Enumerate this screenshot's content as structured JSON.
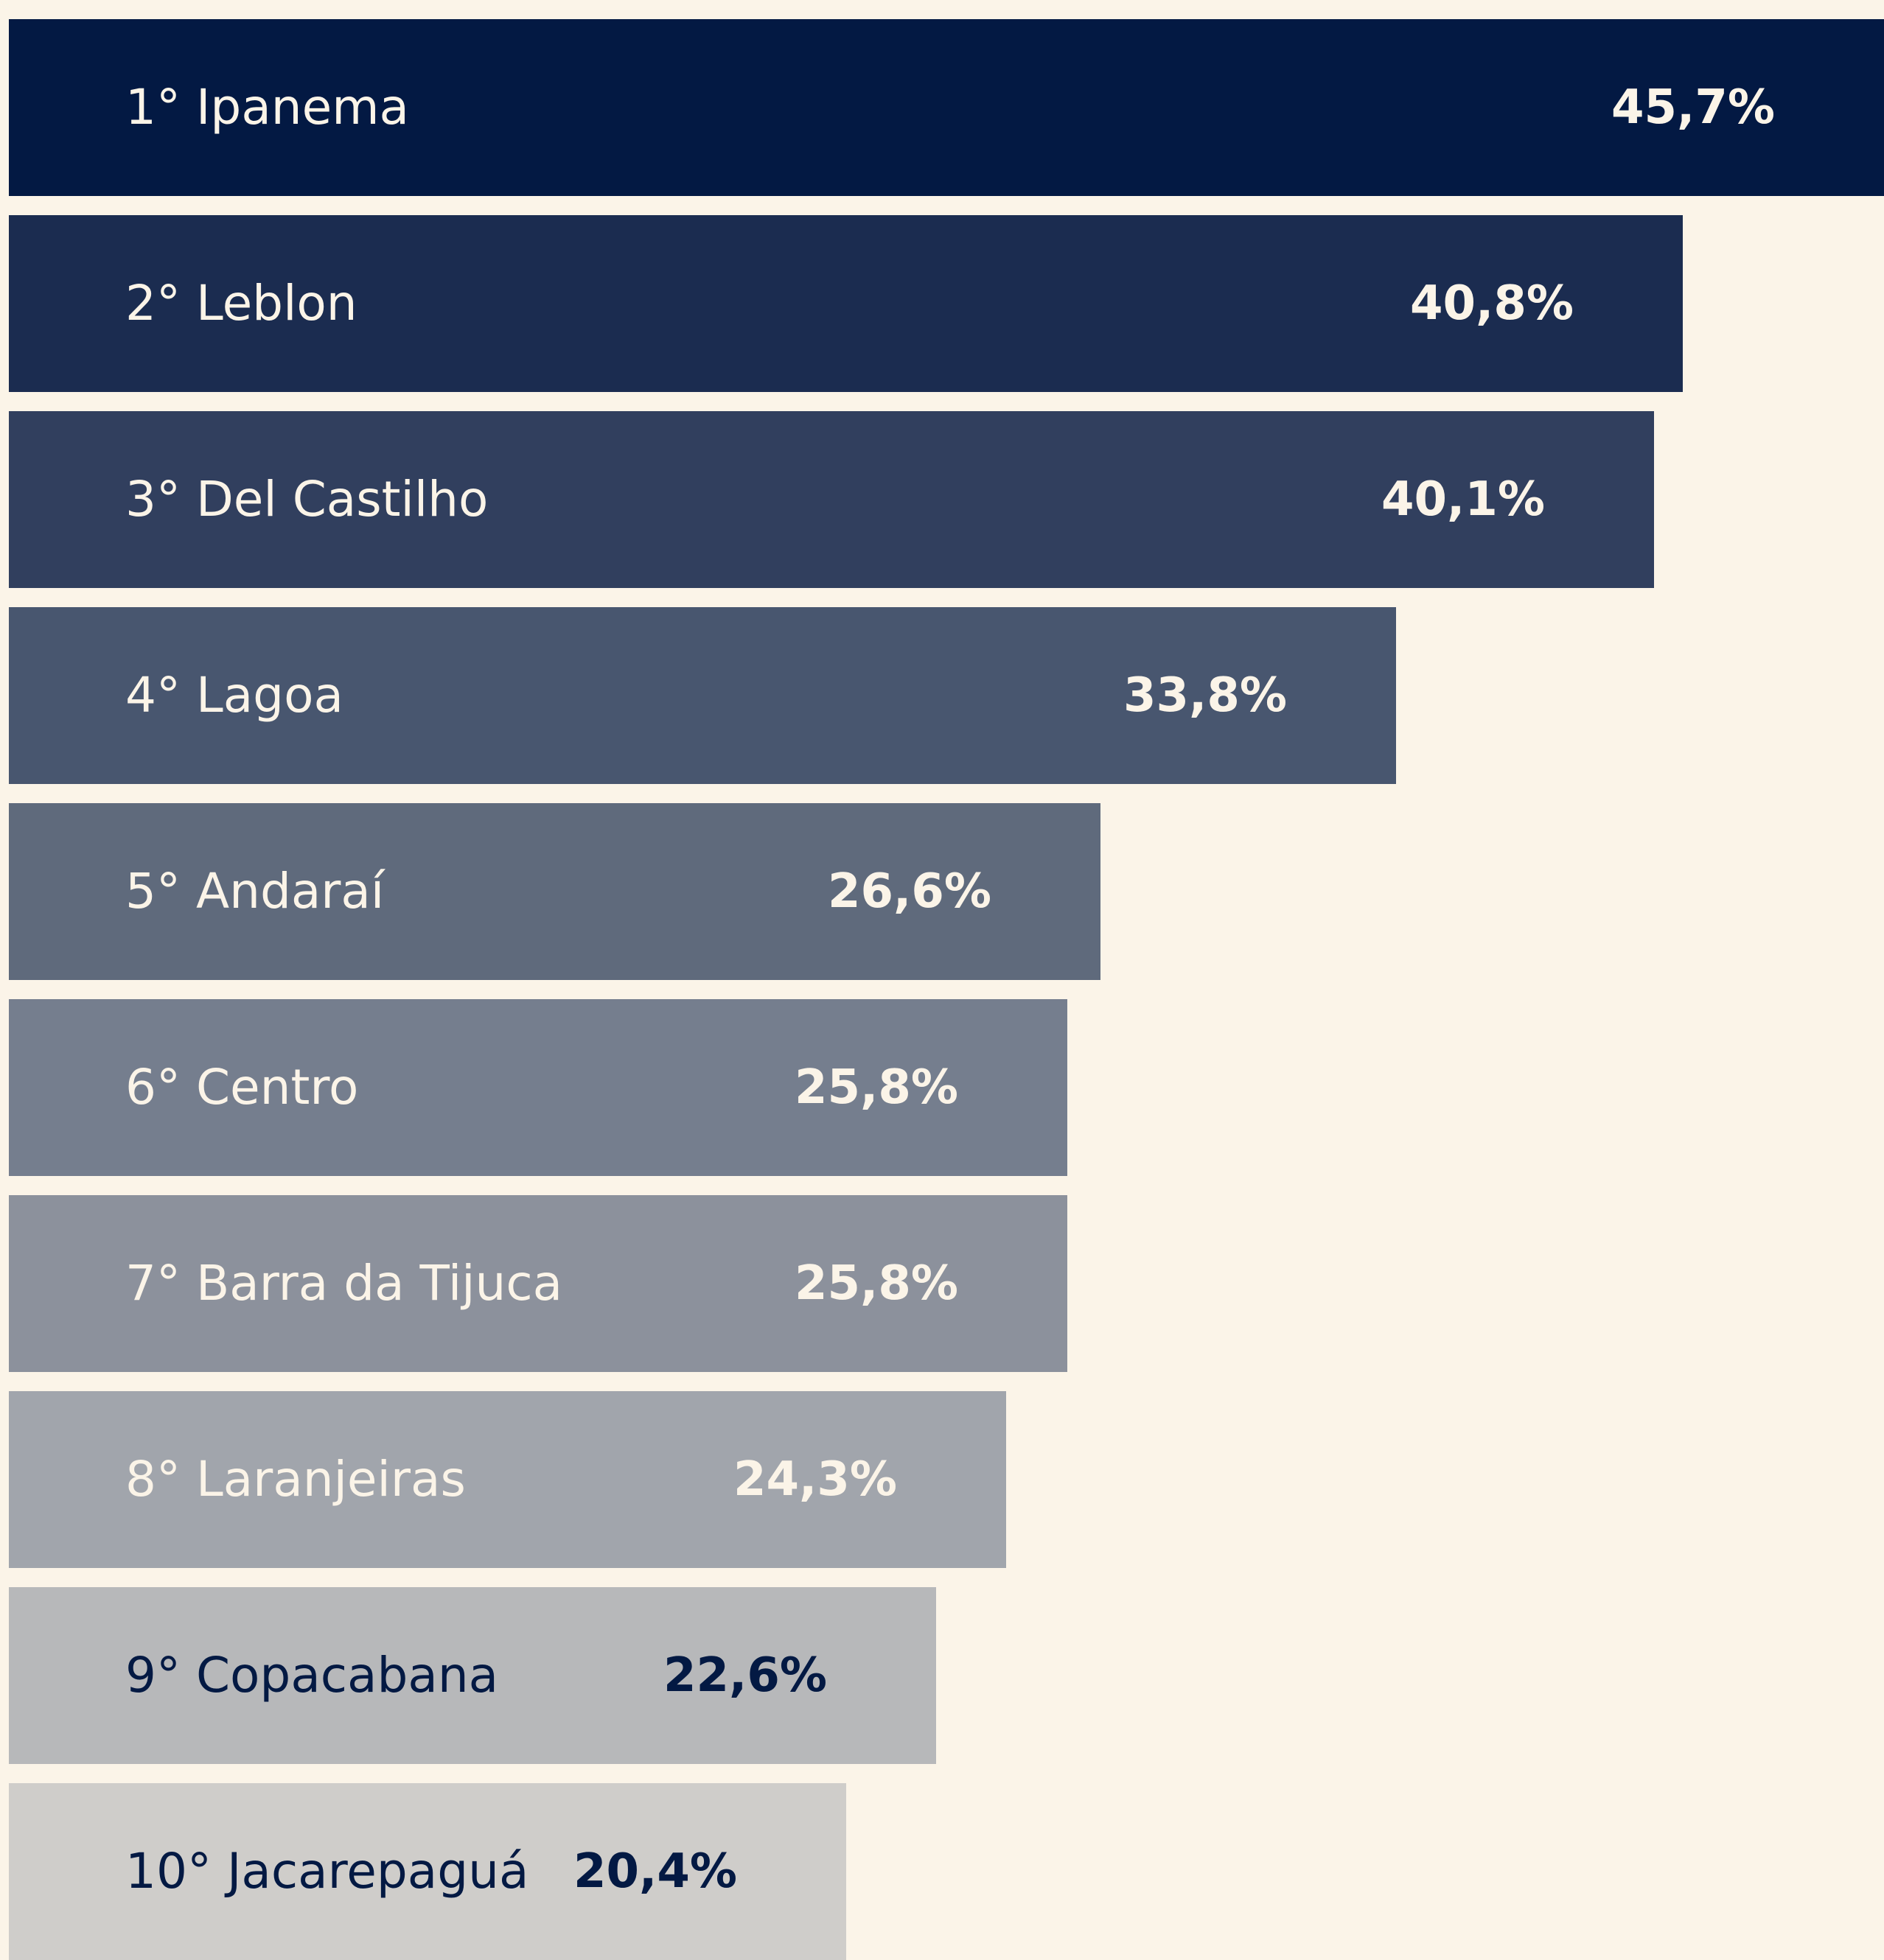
{
  "chart_data": {
    "type": "bar",
    "orientation": "horizontal",
    "categories": [
      "1° Ipanema",
      "2° Leblon",
      "3° Del Castilho",
      "4° Lagoa",
      "5° Andaraí",
      "6° Centro",
      "7° Barra da Tijuca",
      "8° Laranjeiras",
      "9° Copacabana",
      "10° Jacarepaguá"
    ],
    "values": [
      45.7,
      40.8,
      40.1,
      33.8,
      26.6,
      25.8,
      25.8,
      24.3,
      22.6,
      20.4
    ],
    "value_labels": [
      "45,7%",
      "40,8%",
      "40,1%",
      "33,8%",
      "26,6%",
      "25,8%",
      "25,8%",
      "24,3%",
      "22,6%",
      "20,4%"
    ],
    "colors": [
      "#031943",
      "#1b2c50",
      "#313f5e",
      "#48566f",
      "#5f6a7c",
      "#757e8e",
      "#8c919c",
      "#a1a5ac",
      "#b7b8ba",
      "#cfcdca"
    ],
    "label_colors": [
      "#fbf4e8",
      "#fbf4e8",
      "#fbf4e8",
      "#fbf4e8",
      "#fbf4e8",
      "#fbf4e8",
      "#fbf4e8",
      "#fbf4e8",
      "#031943",
      "#031943"
    ],
    "background": "#fbf4e8",
    "title": "",
    "xlabel": "",
    "ylabel": "",
    "grid": false,
    "legend": "none"
  }
}
